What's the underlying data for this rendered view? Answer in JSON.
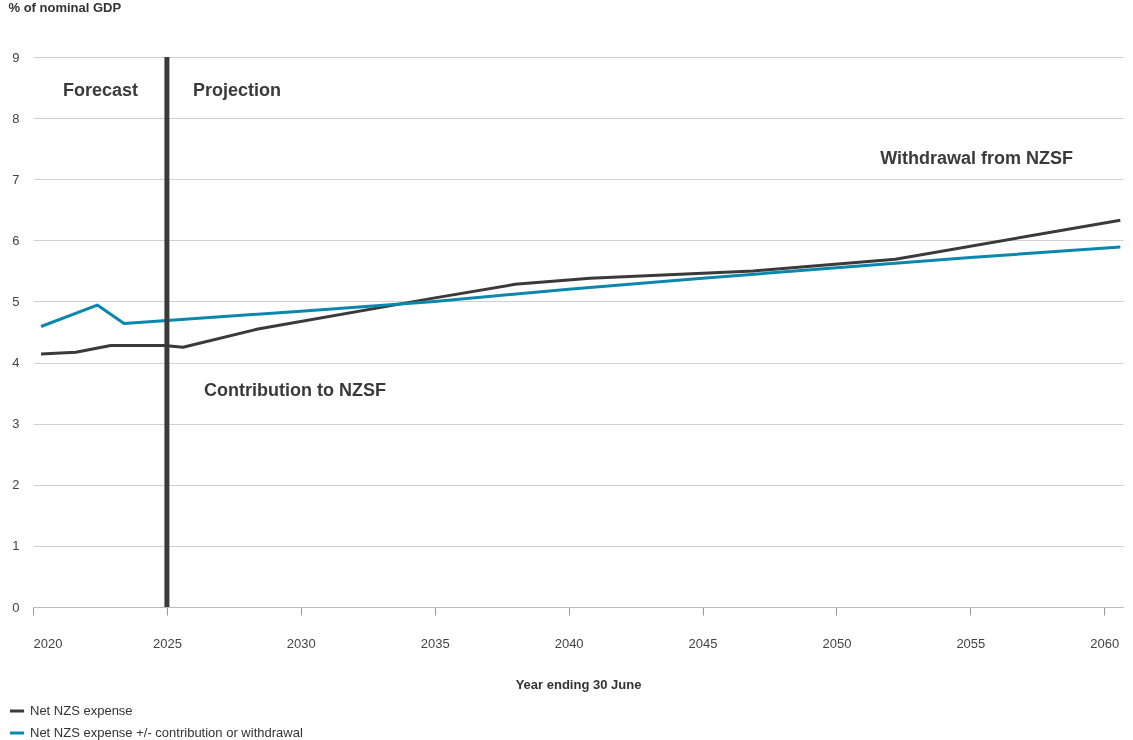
{
  "chart_data": {
    "type": "line",
    "ylabel": "% of nominal GDP",
    "xlabel": "Year ending 30 June",
    "xlim": [
      2020,
      2060.7
    ],
    "xticks": [
      2020,
      2025,
      2030,
      2035,
      2040,
      2045,
      2050,
      2055,
      2060
    ],
    "ylim": [
      0,
      9
    ],
    "yticks": [
      0,
      1,
      2,
      3,
      4,
      5,
      6,
      7,
      8,
      9
    ],
    "grid": "y",
    "legend": "bottom left",
    "marker": "none",
    "line_style": "solid",
    "series": [
      {
        "name": "Net NZS expense",
        "color": "#3a3a3a",
        "x": [
          2020.3,
          2021.6,
          2022.9,
          2024.9,
          2025.6,
          2028.4,
          2034.9,
          2038.0,
          2040.8,
          2046.9,
          2052.2,
          2060.6
        ],
        "values": [
          4.14,
          4.17,
          4.28,
          4.28,
          4.25,
          4.55,
          5.05,
          5.28,
          5.38,
          5.5,
          5.69,
          6.33
        ]
      },
      {
        "name": "Net NZS expense +/- contribution or withdrawal",
        "color": "#0a87ad",
        "x": [
          2020.3,
          2022.4,
          2023.4,
          2025,
          2030,
          2035,
          2040,
          2045,
          2050,
          2055,
          2060.6
        ],
        "values": [
          4.59,
          4.94,
          4.64,
          4.69,
          4.84,
          5.0,
          5.2,
          5.38,
          5.55,
          5.72,
          5.89
        ]
      }
    ],
    "ref_lines": [
      {
        "axis": "x",
        "value": 2025,
        "color": "#3a3a3a"
      }
    ],
    "annotations": [
      "Forecast",
      "Projection",
      "Withdrawal from NZSF",
      "Contribution to NZSF"
    ]
  }
}
